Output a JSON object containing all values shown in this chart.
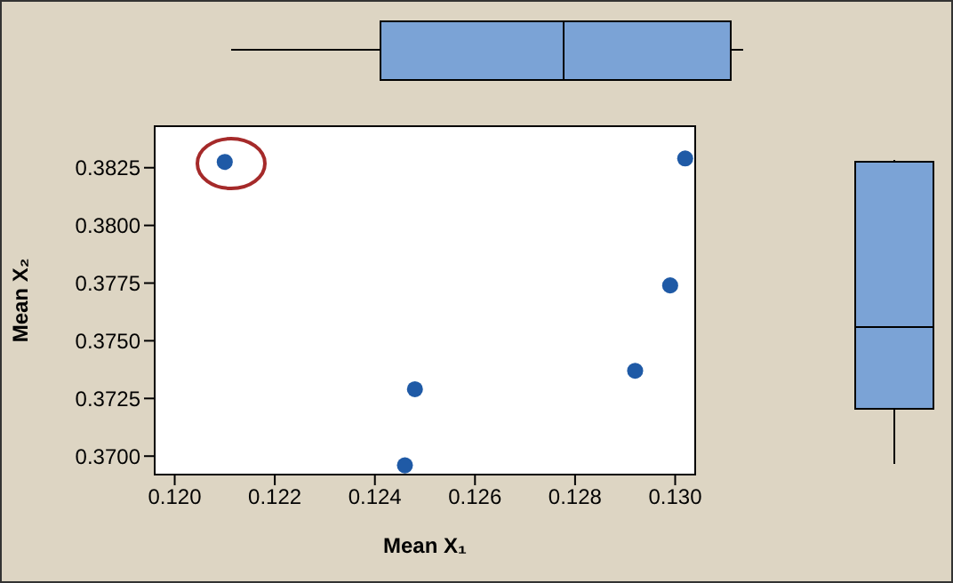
{
  "chart_data": {
    "type": "scatter",
    "x": [
      0.121,
      0.1302,
      0.1299,
      0.1292,
      0.1248,
      0.1246
    ],
    "values": [
      0.38275,
      0.3829,
      0.3774,
      0.3737,
      0.3729,
      0.3696
    ],
    "color": "#1f5aa6",
    "marker": "circle",
    "xlabel": "Mean X₁",
    "ylabel": "Mean X₂",
    "xlim": [
      0.1196,
      0.1304
    ],
    "ylim": [
      0.3692,
      0.3843
    ],
    "xticks": [
      {
        "value": 0.12,
        "label": "0.120"
      },
      {
        "value": 0.122,
        "label": "0.122"
      },
      {
        "value": 0.124,
        "label": "0.124"
      },
      {
        "value": 0.126,
        "label": "0.126"
      },
      {
        "value": 0.128,
        "label": "0.128"
      },
      {
        "value": 0.13,
        "label": "0.130"
      }
    ],
    "yticks": [
      {
        "value": 0.37,
        "label": "0.3700"
      },
      {
        "value": 0.3725,
        "label": "0.3725"
      },
      {
        "value": 0.375,
        "label": "0.3750"
      },
      {
        "value": 0.3775,
        "label": "0.3775"
      },
      {
        "value": 0.38,
        "label": "0.3800"
      },
      {
        "value": 0.3825,
        "label": "0.3825"
      }
    ]
  }
}
